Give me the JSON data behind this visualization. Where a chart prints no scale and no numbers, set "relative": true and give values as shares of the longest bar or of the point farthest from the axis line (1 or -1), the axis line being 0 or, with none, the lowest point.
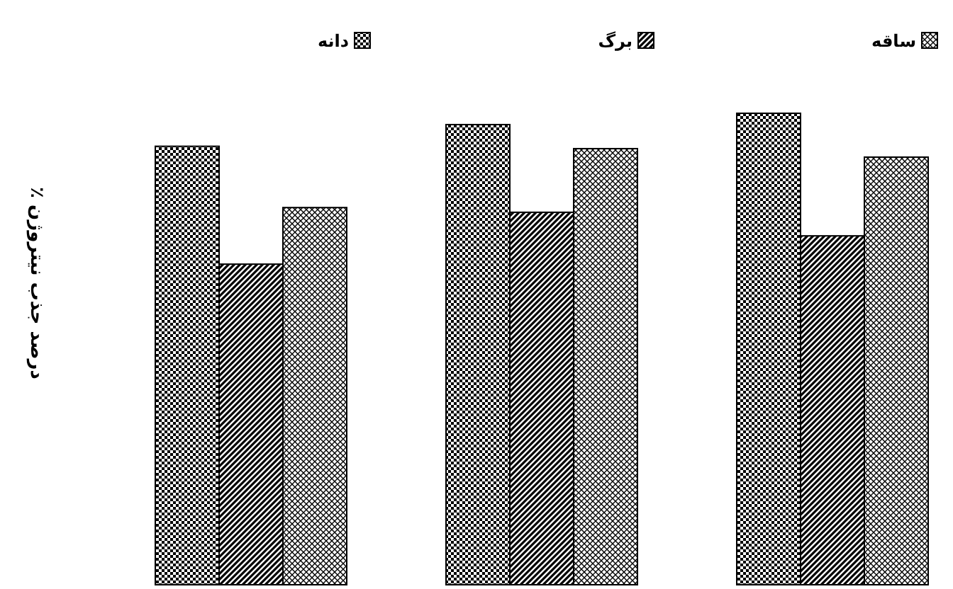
{
  "chart_data": {
    "type": "bar",
    "relative": true,
    "ylabel": "درصد جذب نیتروژن ٪",
    "categories": [
      null,
      null,
      null
    ],
    "legend": "top",
    "grid": false,
    "series": [
      {
        "name": "دانه",
        "color": "#000000",
        "values": [
          0.93,
          0.976,
          1
        ]
      },
      {
        "name": "برگ",
        "color": "#000000",
        "values": [
          0.68,
          0.79,
          0.74
        ]
      },
      {
        "name": "ساقه",
        "color": "#000000",
        "values": [
          0.8,
          0.925,
          0.907
        ]
      }
    ]
  }
}
